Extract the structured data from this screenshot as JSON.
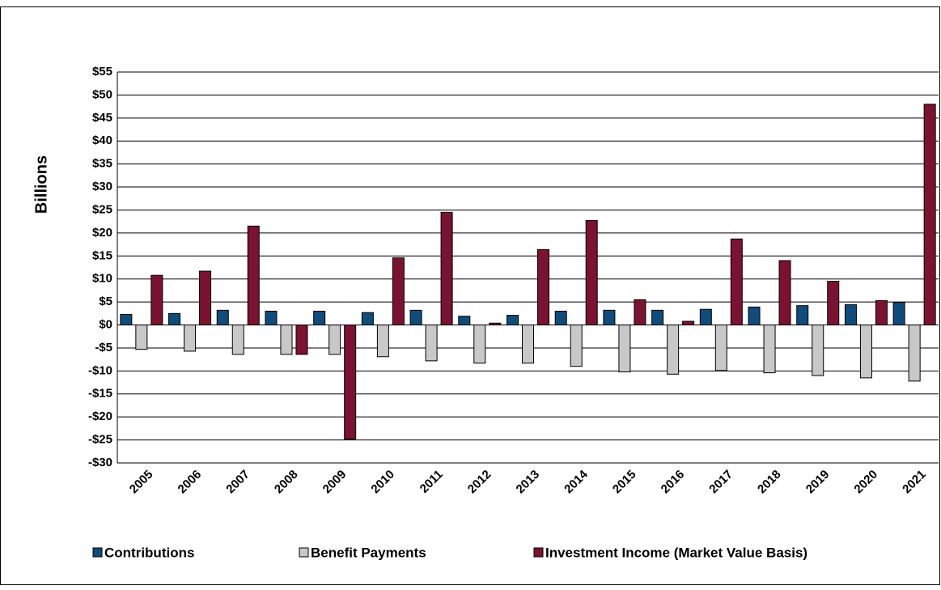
{
  "chart_data": {
    "type": "bar",
    "y_label": "Billions",
    "categories": [
      "2005",
      "2006",
      "2007",
      "2008",
      "2009",
      "2010",
      "2011",
      "2012",
      "2013",
      "2014",
      "2015",
      "2016",
      "2017",
      "2018",
      "2019",
      "2020",
      "2021"
    ],
    "series": [
      {
        "name": "Contributions",
        "color": "#0f4c7c",
        "values": [
          2.3,
          2.5,
          3.2,
          3.0,
          3.0,
          2.7,
          3.2,
          1.9,
          2.1,
          3.0,
          3.2,
          3.2,
          3.4,
          3.9,
          4.2,
          4.4,
          4.9
        ]
      },
      {
        "name": "Benefit Payments",
        "color": "#c8c8c8",
        "values": [
          -5.3,
          -5.7,
          -6.4,
          -6.4,
          -6.4,
          -6.9,
          -7.8,
          -8.3,
          -8.3,
          -9.0,
          -10.2,
          -10.7,
          -9.9,
          -10.4,
          -11.0,
          -11.5,
          -12.2
        ]
      },
      {
        "name": "Investment Income (Market Value Basis)",
        "color": "#7b1230",
        "values": [
          10.8,
          11.7,
          21.5,
          -6.4,
          -24.8,
          14.6,
          24.5,
          0.4,
          16.4,
          22.7,
          5.5,
          0.8,
          18.7,
          14.0,
          9.5,
          5.3,
          48.0
        ]
      }
    ],
    "ylim": [
      -30,
      55
    ],
    "yticks": [
      {
        "value": -30,
        "label": "-$30"
      },
      {
        "value": -25,
        "label": "-$25"
      },
      {
        "value": -20,
        "label": "-$20"
      },
      {
        "value": -15,
        "label": "-$15"
      },
      {
        "value": -10,
        "label": "-$10"
      },
      {
        "value": -5,
        "label": "-$5"
      },
      {
        "value": 0,
        "label": "$0"
      },
      {
        "value": 5,
        "label": "$5"
      },
      {
        "value": 10,
        "label": "$10"
      },
      {
        "value": 15,
        "label": "$15"
      },
      {
        "value": 20,
        "label": "$20"
      },
      {
        "value": 25,
        "label": "$25"
      },
      {
        "value": 30,
        "label": "$30"
      },
      {
        "value": 35,
        "label": "$35"
      },
      {
        "value": 40,
        "label": "$40"
      },
      {
        "value": 45,
        "label": "$45"
      },
      {
        "value": 50,
        "label": "$50"
      },
      {
        "value": 55,
        "label": "$55"
      }
    ],
    "grid": true
  }
}
